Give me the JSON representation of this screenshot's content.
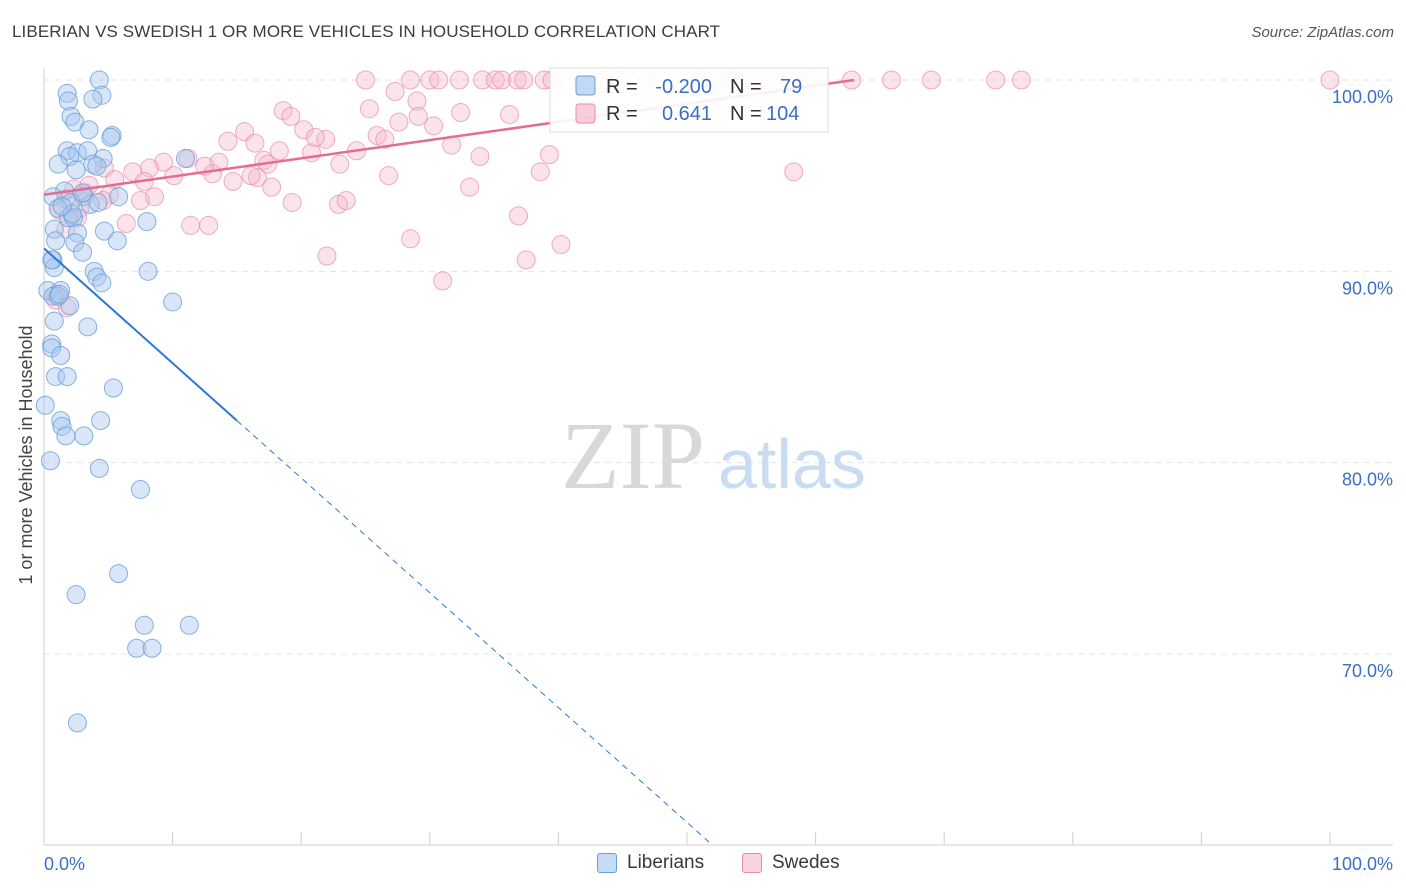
{
  "title": "LIBERIAN VS SWEDISH 1 OR MORE VEHICLES IN HOUSEHOLD CORRELATION CHART",
  "source": "Source: ZipAtlas.com",
  "watermark": {
    "zip": "ZIP",
    "atlas": "atlas"
  },
  "colors": {
    "liberians_fill": "#a8c8f0",
    "liberians_stroke": "#6a9fd8",
    "liberians_line": "#2a78d8",
    "swedes_fill": "#f6b9cc",
    "swedes_stroke": "#e98aaa",
    "swedes_line": "#e56a95",
    "value_text": "#3a6fc4",
    "grid": "#e3e3e3"
  },
  "legend_top": {
    "rows": [
      {
        "r_label": "R =",
        "r_value": "-0.200",
        "n_label": "N =",
        "n_value": "79"
      },
      {
        "r_label": "R =",
        "r_value": "0.641",
        "n_label": "N =",
        "n_value": "104"
      }
    ]
  },
  "legend_bottom": {
    "items": [
      {
        "label": "Liberians"
      },
      {
        "label": "Swedes"
      }
    ]
  },
  "chart_data": {
    "type": "scatter",
    "title": "LIBERIAN VS SWEDISH 1 OR MORE VEHICLES IN HOUSEHOLD CORRELATION CHART",
    "xlabel": "",
    "ylabel": "1 or more Vehicles in Household",
    "xlim": [
      0,
      100
    ],
    "ylim": [
      60,
      100.5
    ],
    "x_tick_labels": [
      "0.0%",
      "100.0%"
    ],
    "y_ticks": [
      100,
      90,
      80,
      70
    ],
    "y_tick_labels": [
      "100.0%",
      "90.0%",
      "80.0%",
      "70.0%"
    ],
    "series": [
      {
        "name": "Liberians",
        "R": -0.2,
        "N": 79,
        "trend": {
          "x0": 0,
          "y0": 91.2,
          "x1": 15,
          "y1": 82.2,
          "dashed_to_x": 52,
          "dashed_to_y": 60.0
        },
        "points": [
          [
            4.3,
            100
          ],
          [
            1.8,
            99.3
          ],
          [
            4.5,
            99.2
          ],
          [
            1.9,
            98.9
          ],
          [
            3.8,
            99
          ],
          [
            2.1,
            98.1
          ],
          [
            2.4,
            97.8
          ],
          [
            3.5,
            97.4
          ],
          [
            5.3,
            97.1
          ],
          [
            5.2,
            97
          ],
          [
            1.8,
            96.3
          ],
          [
            2.6,
            96.2
          ],
          [
            3.4,
            96.3
          ],
          [
            2,
            96
          ],
          [
            4.6,
            95.9
          ],
          [
            1.1,
            95.6
          ],
          [
            2.5,
            95.3
          ],
          [
            3.8,
            95.6
          ],
          [
            11,
            95.9
          ],
          [
            1.6,
            94.2
          ],
          [
            0.7,
            93.9
          ],
          [
            3.1,
            93.9
          ],
          [
            5.8,
            93.9
          ],
          [
            2.1,
            93.6
          ],
          [
            3.6,
            93.5
          ],
          [
            4.2,
            93.6
          ],
          [
            1.1,
            93.3
          ],
          [
            1.9,
            92.8
          ],
          [
            2.3,
            92.8
          ],
          [
            8,
            92.6
          ],
          [
            0.8,
            92.2
          ],
          [
            2.6,
            92
          ],
          [
            4.7,
            92.1
          ],
          [
            0.9,
            91.6
          ],
          [
            2.4,
            91.5
          ],
          [
            5.7,
            91.6
          ],
          [
            3,
            91
          ],
          [
            0.7,
            90.6
          ],
          [
            0.8,
            90.2
          ],
          [
            3.9,
            90
          ],
          [
            8.1,
            90
          ],
          [
            4.1,
            89.7
          ],
          [
            4.5,
            89.4
          ],
          [
            0.3,
            89
          ],
          [
            1.3,
            89
          ],
          [
            0.7,
            88.7
          ],
          [
            1.1,
            88.7
          ],
          [
            2,
            88.2
          ],
          [
            10,
            88.4
          ],
          [
            0.8,
            87.4
          ],
          [
            3.4,
            87.1
          ],
          [
            0.6,
            86.2
          ],
          [
            0.6,
            86
          ],
          [
            1.3,
            85.6
          ],
          [
            0.9,
            84.5
          ],
          [
            1.8,
            84.5
          ],
          [
            5.4,
            83.9
          ],
          [
            0.1,
            83
          ],
          [
            1.3,
            82.2
          ],
          [
            4.4,
            82.2
          ],
          [
            1.4,
            81.9
          ],
          [
            1.7,
            81.4
          ],
          [
            3.1,
            81.4
          ],
          [
            0.5,
            80.1
          ],
          [
            4.3,
            79.7
          ],
          [
            7.5,
            78.6
          ],
          [
            5.8,
            74.2
          ],
          [
            2.5,
            73.1
          ],
          [
            7.8,
            71.5
          ],
          [
            11.3,
            71.5
          ],
          [
            7.2,
            70.3
          ],
          [
            8.4,
            70.3
          ],
          [
            2.6,
            66.4
          ],
          [
            0.6,
            90.6
          ],
          [
            1.2,
            88.8
          ],
          [
            2.2,
            93
          ],
          [
            3,
            94.1
          ],
          [
            1.4,
            93.4
          ],
          [
            4.1,
            95.5
          ]
        ]
      },
      {
        "name": "Swedes",
        "R": 0.641,
        "N": 104,
        "trend": {
          "x0": 0,
          "y0": 94.0,
          "x1": 63,
          "y1": 100.0
        },
        "points": [
          [
            25,
            100
          ],
          [
            28.5,
            100
          ],
          [
            30,
            100
          ],
          [
            30.7,
            100
          ],
          [
            32.3,
            100
          ],
          [
            34.1,
            100
          ],
          [
            35.1,
            100
          ],
          [
            35.6,
            100
          ],
          [
            36.8,
            100
          ],
          [
            37.3,
            100
          ],
          [
            38.9,
            100
          ],
          [
            39.5,
            100
          ],
          [
            40.6,
            100
          ],
          [
            42,
            100
          ],
          [
            43.5,
            100
          ],
          [
            44.7,
            100
          ],
          [
            46.9,
            100
          ],
          [
            48.7,
            100
          ],
          [
            51,
            100
          ],
          [
            52.1,
            100
          ],
          [
            53.4,
            100
          ],
          [
            54.3,
            100
          ],
          [
            56.1,
            100
          ],
          [
            58,
            100
          ],
          [
            59.5,
            100
          ],
          [
            62.8,
            100
          ],
          [
            65.9,
            100
          ],
          [
            69,
            100
          ],
          [
            74,
            100
          ],
          [
            76,
            100
          ],
          [
            100,
            100
          ],
          [
            27.3,
            99.4
          ],
          [
            29,
            98.9
          ],
          [
            18.6,
            98.4
          ],
          [
            25.3,
            98.5
          ],
          [
            19.2,
            98.1
          ],
          [
            32.4,
            98.3
          ],
          [
            27.6,
            97.8
          ],
          [
            30.3,
            97.6
          ],
          [
            20.2,
            97.4
          ],
          [
            15.6,
            97.3
          ],
          [
            25.9,
            97.1
          ],
          [
            21.9,
            96.9
          ],
          [
            14.3,
            96.8
          ],
          [
            20.8,
            96.2
          ],
          [
            24.3,
            96.3
          ],
          [
            31.7,
            96.6
          ],
          [
            33.9,
            96
          ],
          [
            17.1,
            95.8
          ],
          [
            11.2,
            95.9
          ],
          [
            9.3,
            95.7
          ],
          [
            13.6,
            95.7
          ],
          [
            17.4,
            95.6
          ],
          [
            12.5,
            95.5
          ],
          [
            8.2,
            95.4
          ],
          [
            6.9,
            95.2
          ],
          [
            4.7,
            95.4
          ],
          [
            5.5,
            94.8
          ],
          [
            23,
            95.6
          ],
          [
            26.8,
            95
          ],
          [
            38.6,
            95.2
          ],
          [
            58.3,
            95.2
          ],
          [
            16.6,
            94.9
          ],
          [
            16.1,
            95
          ],
          [
            7.8,
            94.7
          ],
          [
            17.7,
            94.4
          ],
          [
            33.1,
            94.4
          ],
          [
            2.3,
            94.3
          ],
          [
            3.2,
            94.1
          ],
          [
            5.1,
            94
          ],
          [
            1.7,
            93.8
          ],
          [
            4.6,
            93.7
          ],
          [
            7.5,
            93.7
          ],
          [
            19.3,
            93.6
          ],
          [
            22.9,
            93.5
          ],
          [
            23.5,
            93.7
          ],
          [
            1.2,
            93.2
          ],
          [
            2.8,
            93.3
          ],
          [
            6.4,
            92.5
          ],
          [
            11.4,
            92.4
          ],
          [
            12.8,
            92.4
          ],
          [
            1.7,
            92.2
          ],
          [
            28.5,
            91.7
          ],
          [
            36.9,
            92.9
          ],
          [
            40.2,
            91.4
          ],
          [
            22,
            90.8
          ],
          [
            37.5,
            90.6
          ],
          [
            31,
            89.5
          ],
          [
            0.9,
            88.5
          ],
          [
            1.8,
            88.1
          ],
          [
            0.9,
            88.8
          ],
          [
            2.6,
            92.8
          ],
          [
            3.5,
            94.5
          ],
          [
            8.6,
            93.9
          ],
          [
            10.1,
            95
          ],
          [
            13.1,
            95.1
          ],
          [
            14.7,
            94.7
          ],
          [
            16.4,
            96.7
          ],
          [
            18.3,
            96.3
          ],
          [
            21.1,
            97
          ],
          [
            26.5,
            96.9
          ],
          [
            29.1,
            98.1
          ],
          [
            36.2,
            98.2
          ],
          [
            39.3,
            96.1
          ]
        ]
      }
    ]
  }
}
